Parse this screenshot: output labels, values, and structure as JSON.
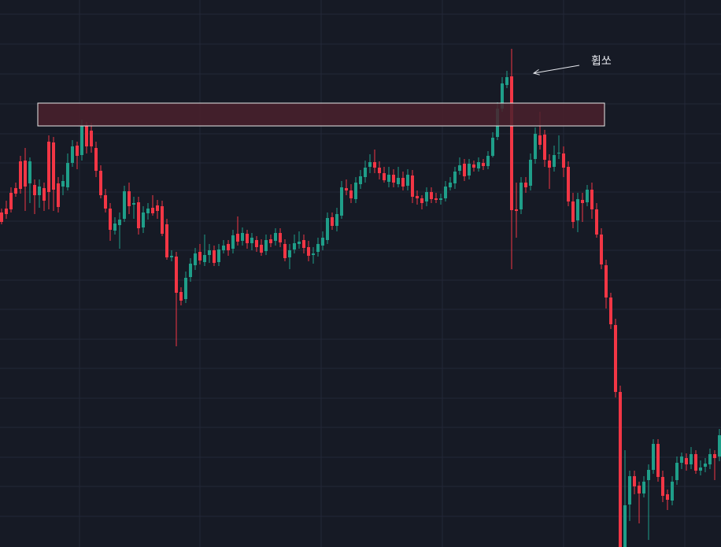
{
  "annotation": {
    "text": "휩쏘"
  },
  "colors": {
    "background": "#161a25",
    "grid": "#232838",
    "up": "#1f9e89",
    "down": "#f23645",
    "zone_fill": "#4a212d",
    "zone_border": "#e8e8e8",
    "annotation": "#e6e8ee"
  },
  "chart_data": {
    "type": "candlestick",
    "grid": true,
    "ylim": [
      0,
      695
    ],
    "y_inverted": true,
    "zone": {
      "x_from": 48,
      "x_to": 768,
      "y_from": 160,
      "y_to": 131
    },
    "annotation_arrow": {
      "from": [
        736,
        83
      ],
      "to": [
        678,
        93
      ]
    },
    "candles": [
      [
        2,
        270,
        282,
        265,
        285
      ],
      [
        8,
        265,
        272,
        255,
        278
      ],
      [
        14,
        245,
        266,
        238,
        270
      ],
      [
        20,
        239,
        246,
        232,
        250
      ],
      [
        26,
        205,
        240,
        198,
        246
      ],
      [
        32,
        204,
        237,
        188,
        268
      ],
      [
        38,
        233,
        205,
        200,
        258
      ],
      [
        44,
        235,
        248,
        228,
        272
      ],
      [
        50,
        248,
        237,
        228,
        264
      ],
      [
        56,
        239,
        255,
        232,
        268
      ],
      [
        62,
        180,
        244,
        172,
        266
      ],
      [
        68,
        181,
        241,
        174,
        268
      ],
      [
        74,
        233,
        263,
        225,
        270
      ],
      [
        80,
        237,
        230,
        222,
        248
      ],
      [
        86,
        238,
        207,
        195,
        242
      ],
      [
        92,
        207,
        186,
        178,
        212
      ],
      [
        98,
        185,
        198,
        180,
        215
      ],
      [
        104,
        197,
        160,
        152,
        204
      ],
      [
        110,
        160,
        186,
        155,
        195
      ],
      [
        116,
        166,
        186,
        156,
        194
      ],
      [
        122,
        188,
        217,
        180,
        225
      ],
      [
        128,
        217,
        248,
        210,
        252
      ],
      [
        134,
        248,
        265,
        240,
        270
      ],
      [
        140,
        265,
        292,
        258,
        306
      ],
      [
        146,
        293,
        284,
        276,
        298
      ],
      [
        152,
        286,
        279,
        270,
        316
      ],
      [
        158,
        278,
        243,
        236,
        282
      ],
      [
        164,
        243,
        262,
        232,
        272
      ],
      [
        170,
        260,
        258,
        250,
        278
      ],
      [
        176,
        257,
        290,
        250,
        298
      ],
      [
        182,
        289,
        270,
        262,
        296
      ],
      [
        188,
        271,
        265,
        258,
        279
      ],
      [
        194,
        264,
        271,
        248,
        274
      ],
      [
        200,
        261,
        268,
        254,
        278
      ],
      [
        206,
        262,
        297,
        255,
        300
      ],
      [
        212,
        285,
        327,
        278,
        330
      ],
      [
        218,
        327,
        325,
        318,
        332
      ],
      [
        224,
        326,
        372,
        320,
        440
      ],
      [
        230,
        371,
        382,
        365,
        388
      ],
      [
        236,
        380,
        353,
        345,
        385
      ],
      [
        242,
        352,
        335,
        328,
        358
      ],
      [
        248,
        337,
        322,
        315,
        343
      ],
      [
        254,
        320,
        331,
        310,
        336
      ],
      [
        260,
        333,
        324,
        298,
        338
      ],
      [
        266,
        324,
        318,
        310,
        334
      ],
      [
        272,
        318,
        334,
        312,
        338
      ],
      [
        278,
        333,
        317,
        310,
        338
      ],
      [
        284,
        318,
        312,
        305,
        322
      ],
      [
        290,
        310,
        318,
        305,
        325
      ],
      [
        296,
        316,
        299,
        292,
        322
      ],
      [
        302,
        297,
        307,
        275,
        312
      ],
      [
        308,
        306,
        296,
        289,
        312
      ],
      [
        314,
        297,
        309,
        292,
        316
      ],
      [
        320,
        309,
        302,
        296,
        318
      ],
      [
        326,
        305,
        314,
        300,
        320
      ],
      [
        332,
        311,
        321,
        304,
        325
      ],
      [
        338,
        319,
        305,
        298,
        324
      ],
      [
        344,
        304,
        309,
        298,
        314
      ],
      [
        350,
        306,
        296,
        290,
        312
      ],
      [
        356,
        296,
        308,
        290,
        314
      ],
      [
        362,
        310,
        328,
        304,
        332
      ],
      [
        368,
        327,
        318,
        310,
        342
      ],
      [
        374,
        317,
        309,
        298,
        322
      ],
      [
        380,
        310,
        307,
        294,
        316
      ],
      [
        386,
        305,
        315,
        298,
        322
      ],
      [
        392,
        314,
        325,
        306,
        332
      ],
      [
        398,
        324,
        322,
        314,
        335
      ],
      [
        404,
        320,
        310,
        302,
        326
      ],
      [
        410,
        312,
        302,
        294,
        318
      ],
      [
        416,
        305,
        277,
        270,
        310
      ],
      [
        422,
        276,
        287,
        270,
        292
      ],
      [
        428,
        287,
        272,
        264,
        294
      ],
      [
        434,
        274,
        238,
        230,
        278
      ],
      [
        440,
        239,
        242,
        228,
        248
      ],
      [
        446,
        242,
        252,
        234,
        258
      ],
      [
        452,
        253,
        232,
        225,
        258
      ],
      [
        458,
        234,
        224,
        216,
        240
      ],
      [
        464,
        225,
        213,
        204,
        232
      ],
      [
        470,
        212,
        206,
        196,
        220
      ],
      [
        476,
        206,
        213,
        190,
        220
      ],
      [
        482,
        213,
        220,
        205,
        228
      ],
      [
        488,
        220,
        229,
        212,
        232
      ],
      [
        494,
        231,
        222,
        212,
        238
      ],
      [
        500,
        222,
        232,
        215,
        238
      ],
      [
        506,
        234,
        226,
        212,
        238
      ],
      [
        512,
        226,
        237,
        218,
        242
      ],
      [
        518,
        236,
        222,
        215,
        242
      ],
      [
        524,
        223,
        250,
        216,
        258
      ],
      [
        530,
        249,
        252,
        242,
        260
      ],
      [
        536,
        252,
        258,
        248,
        266
      ],
      [
        542,
        256,
        244,
        238,
        262
      ],
      [
        548,
        244,
        253,
        238,
        258
      ],
      [
        554,
        252,
        254,
        245,
        258
      ],
      [
        560,
        254,
        252,
        246,
        260
      ],
      [
        566,
        252,
        237,
        230,
        256
      ],
      [
        572,
        238,
        232,
        225,
        242
      ],
      [
        578,
        233,
        218,
        212,
        240
      ],
      [
        584,
        217,
        210,
        200,
        222
      ],
      [
        590,
        208,
        224,
        202,
        230
      ],
      [
        596,
        223,
        208,
        202,
        228
      ],
      [
        602,
        209,
        213,
        204,
        218
      ],
      [
        608,
        214,
        206,
        200,
        218
      ],
      [
        614,
        207,
        211,
        202,
        216
      ],
      [
        620,
        211,
        198,
        192,
        215
      ],
      [
        626,
        198,
        175,
        168,
        200
      ],
      [
        632,
        174,
        138,
        130,
        178
      ],
      [
        638,
        138,
        106,
        98,
        142
      ],
      [
        644,
        108,
        98,
        90,
        112
      ],
      [
        650,
        97,
        267,
        62,
        342
      ],
      [
        656,
        266,
        268,
        232,
        302
      ],
      [
        662,
        266,
        232,
        225,
        272
      ],
      [
        668,
        232,
        238,
        225,
        245
      ],
      [
        674,
        236,
        203,
        195,
        242
      ],
      [
        680,
        202,
        170,
        162,
        208
      ],
      [
        686,
        172,
        184,
        142,
        190
      ],
      [
        692,
        171,
        203,
        165,
        212
      ],
      [
        698,
        204,
        213,
        196,
        240
      ],
      [
        704,
        212,
        197,
        185,
        218
      ],
      [
        710,
        195,
        194,
        172,
        202
      ],
      [
        716,
        195,
        213,
        186,
        225
      ],
      [
        722,
        212,
        256,
        205,
        262
      ],
      [
        728,
        256,
        282,
        245,
        290
      ],
      [
        734,
        280,
        253,
        245,
        295
      ],
      [
        740,
        254,
        258,
        245,
        282
      ],
      [
        746,
        257,
        241,
        235,
        262
      ],
      [
        752,
        241,
        266,
        232,
        278
      ],
      [
        758,
        266,
        298,
        258,
        302
      ],
      [
        764,
        298,
        336,
        290,
        342
      ],
      [
        770,
        337,
        378,
        330,
        392
      ],
      [
        776,
        378,
        412,
        372,
        418
      ],
      [
        782,
        413,
        498,
        405,
        505
      ],
      [
        788,
        498,
        695,
        490,
        695
      ],
      [
        794,
        695,
        642,
        572,
        695
      ],
      [
        800,
        641,
        605,
        598,
        662
      ],
      [
        806,
        605,
        618,
        598,
        628
      ],
      [
        812,
        617,
        627,
        612,
        665
      ],
      [
        818,
        627,
        612,
        605,
        632
      ],
      [
        824,
        610,
        597,
        590,
        686
      ],
      [
        830,
        597,
        564,
        558,
        602
      ],
      [
        836,
        564,
        606,
        558,
        612
      ],
      [
        842,
        606,
        630,
        598,
        638
      ],
      [
        848,
        628,
        635,
        622,
        648
      ],
      [
        854,
        636,
        612,
        605,
        642
      ],
      [
        860,
        610,
        588,
        580,
        616
      ],
      [
        866,
        588,
        580,
        575,
        596
      ],
      [
        872,
        582,
        590,
        576,
        598
      ],
      [
        878,
        590,
        577,
        568,
        596
      ],
      [
        884,
        577,
        598,
        572,
        602
      ],
      [
        890,
        598,
        594,
        585,
        604
      ],
      [
        896,
        593,
        589,
        582,
        600
      ],
      [
        902,
        590,
        577,
        570,
        596
      ],
      [
        908,
        577,
        582,
        572,
        610
      ],
      [
        914,
        580,
        553,
        545,
        586
      ]
    ]
  }
}
